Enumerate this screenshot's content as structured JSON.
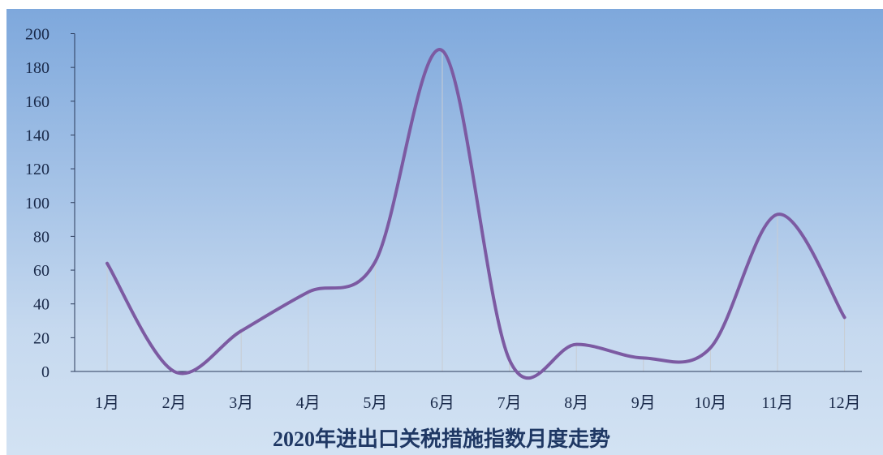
{
  "chart_data": {
    "type": "line",
    "title": "2020年进出口关税措施指数月度走势",
    "categories": [
      "1月",
      "2月",
      "3月",
      "4月",
      "5月",
      "6月",
      "7月",
      "8月",
      "9月",
      "10月",
      "11月",
      "12月"
    ],
    "series": [
      {
        "values": [
          64,
          0,
          24,
          47,
          65,
          190,
          7,
          16,
          8,
          14,
          93,
          32
        ]
      }
    ],
    "ylim": [
      0,
      200
    ],
    "yticks": [
      0,
      20,
      40,
      60,
      80,
      100,
      120,
      140,
      160,
      180,
      200
    ],
    "line_color": "#7c5aa2",
    "drop_line_color": "#c8ccd2",
    "axis_color": "#2a3a5a",
    "smooth": true,
    "grid": false,
    "legend": "none"
  }
}
